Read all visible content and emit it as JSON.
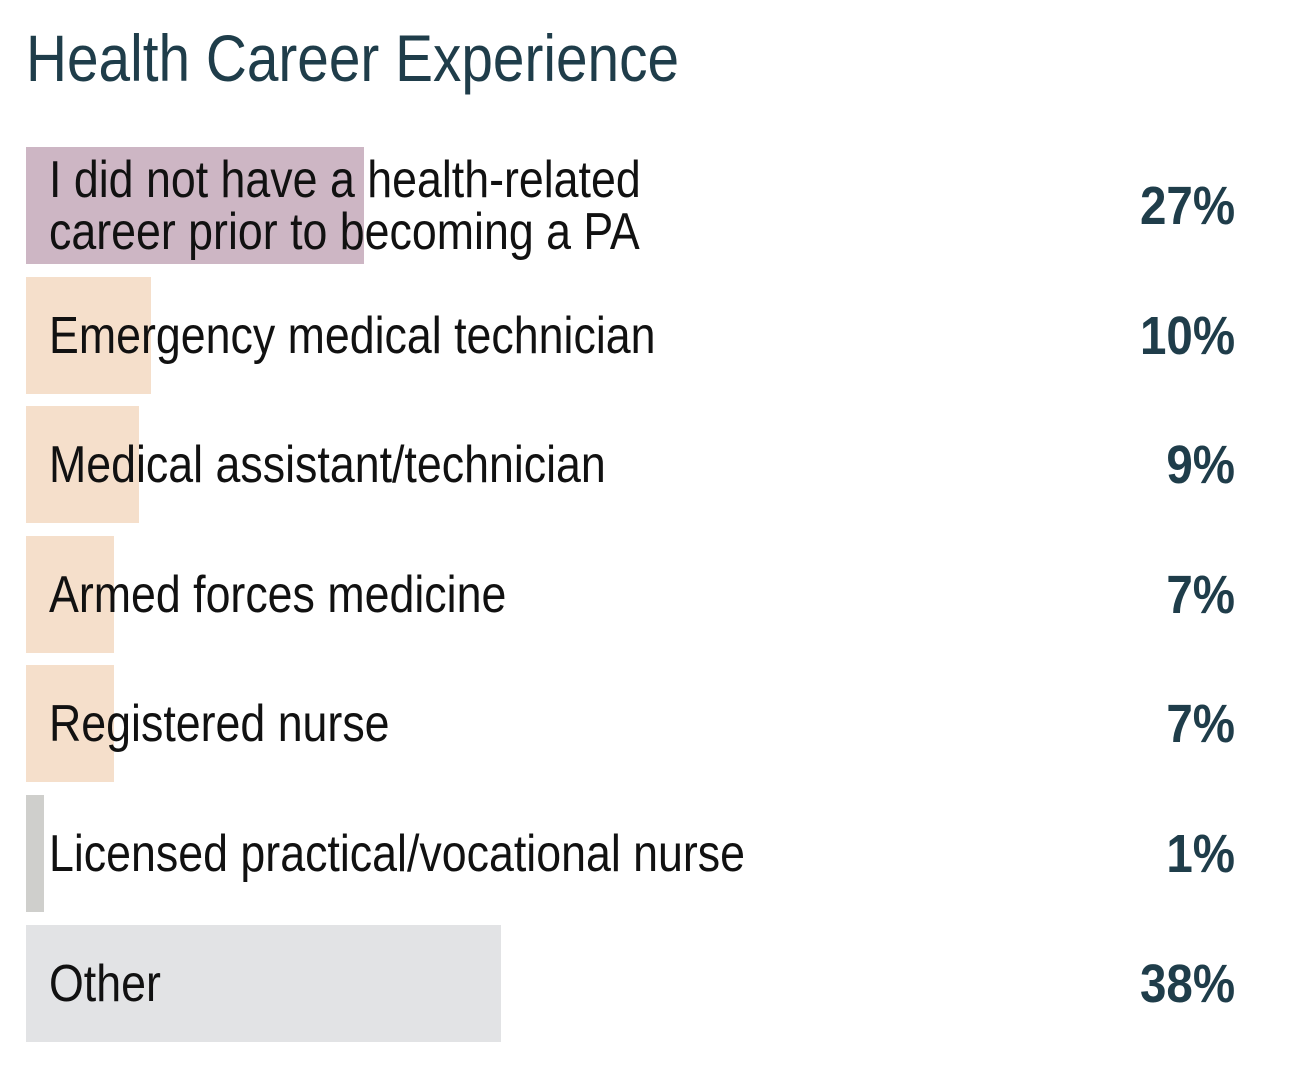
{
  "chart_data": {
    "type": "bar",
    "orientation": "horizontal",
    "title": "Health Career Experience",
    "categories": [
      "I did not have a health-related\ncareer prior to becoming a PA",
      "Emergency medical technician",
      "Medical assistant/technician",
      "Armed forces medicine",
      "Registered nurse",
      "Licensed practical/vocational nurse",
      "Other"
    ],
    "values": [
      27,
      10,
      9,
      7,
      7,
      1,
      38
    ],
    "value_labels": [
      "27%",
      "10%",
      "9%",
      "7%",
      "7%",
      "1%",
      "38%"
    ],
    "colors": [
      "#cdb6c4",
      "#f5dfcb",
      "#f5dfcb",
      "#f5dfcb",
      "#f5dfcb",
      "#cfcfcc",
      "#e2e3e5"
    ],
    "xlim": [
      0,
      100
    ],
    "grid": false,
    "legend": "none"
  }
}
